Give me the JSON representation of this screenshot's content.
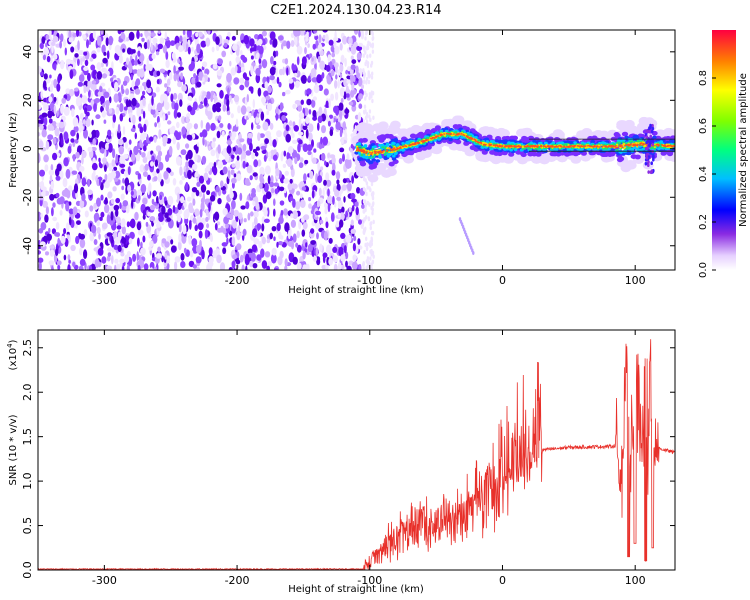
{
  "figure": {
    "title": "C2E1.2024.130.04.23.R14"
  },
  "chart_data": [
    {
      "type": "heatmap",
      "xlabel": "Height of straight line (km)",
      "ylabel": "Frequency (Hz)",
      "xlim": [
        -350,
        130
      ],
      "ylim": [
        -50,
        49
      ],
      "x_ticks": [
        "-300",
        "-200",
        "-100",
        "0",
        "100"
      ],
      "y_ticks": [
        "-40",
        "-20",
        "0",
        "20",
        "40"
      ],
      "colorbar": {
        "label": "Normalized spectral amplitude",
        "range": [
          0,
          1
        ],
        "ticks": [
          "0.0",
          "0.2",
          "0.4",
          "0.6",
          "0.8"
        ]
      },
      "noise_region_x": [
        -350,
        -105
      ],
      "ridge": [
        [
          -110,
          0
        ],
        [
          -100,
          -2
        ],
        [
          -80,
          0
        ],
        [
          -60,
          3
        ],
        [
          -45,
          6
        ],
        [
          -30,
          6
        ],
        [
          -15,
          2
        ],
        [
          0,
          1
        ],
        [
          20,
          1
        ],
        [
          50,
          1
        ],
        [
          70,
          1
        ],
        [
          90,
          1
        ],
        [
          105,
          2
        ],
        [
          130,
          1
        ]
      ],
      "streak": [
        [
          -32,
          -29
        ],
        [
          -22,
          -43
        ]
      ]
    },
    {
      "type": "line",
      "xlabel": "Height of straight line (km)",
      "ylabel": "SNR (10 * v/v)",
      "y_multiplier": "(x10^4)",
      "xlim": [
        -350,
        130
      ],
      "ylim": [
        0,
        2.7
      ],
      "x_ticks": [
        "-300",
        "-200",
        "-100",
        "0",
        "100"
      ],
      "y_ticks": [
        "0.0",
        "0.5",
        "1.0",
        "1.5",
        "2.0",
        "2.5"
      ],
      "series_color": "#e8302a",
      "envelope": [
        [
          -350,
          0.01
        ],
        [
          -105,
          0.01
        ],
        [
          -95,
          0.15
        ],
        [
          -85,
          0.3
        ],
        [
          -70,
          0.4
        ],
        [
          -55,
          0.45
        ],
        [
          -40,
          0.55
        ],
        [
          -25,
          0.65
        ],
        [
          -10,
          0.8
        ],
        [
          0,
          0.95
        ],
        [
          10,
          1.1
        ],
        [
          20,
          1.25
        ],
        [
          30,
          1.35
        ],
        [
          50,
          1.38
        ],
        [
          80,
          1.39
        ],
        [
          95,
          1.4
        ],
        [
          110,
          1.4
        ],
        [
          130,
          1.32
        ]
      ],
      "spikes": [
        [
          -75,
          0.55
        ],
        [
          -60,
          0.75
        ],
        [
          -45,
          0.85
        ],
        [
          -12,
          1.2
        ],
        [
          8,
          1.62
        ],
        [
          93,
          2.55
        ],
        [
          102,
          2.45
        ],
        [
          108,
          2.65
        ],
        [
          112,
          2.6
        ]
      ],
      "dips": [
        [
          95,
          0.15
        ],
        [
          100,
          0.3
        ],
        [
          108,
          0.1
        ],
        [
          113,
          0.25
        ]
      ]
    }
  ]
}
